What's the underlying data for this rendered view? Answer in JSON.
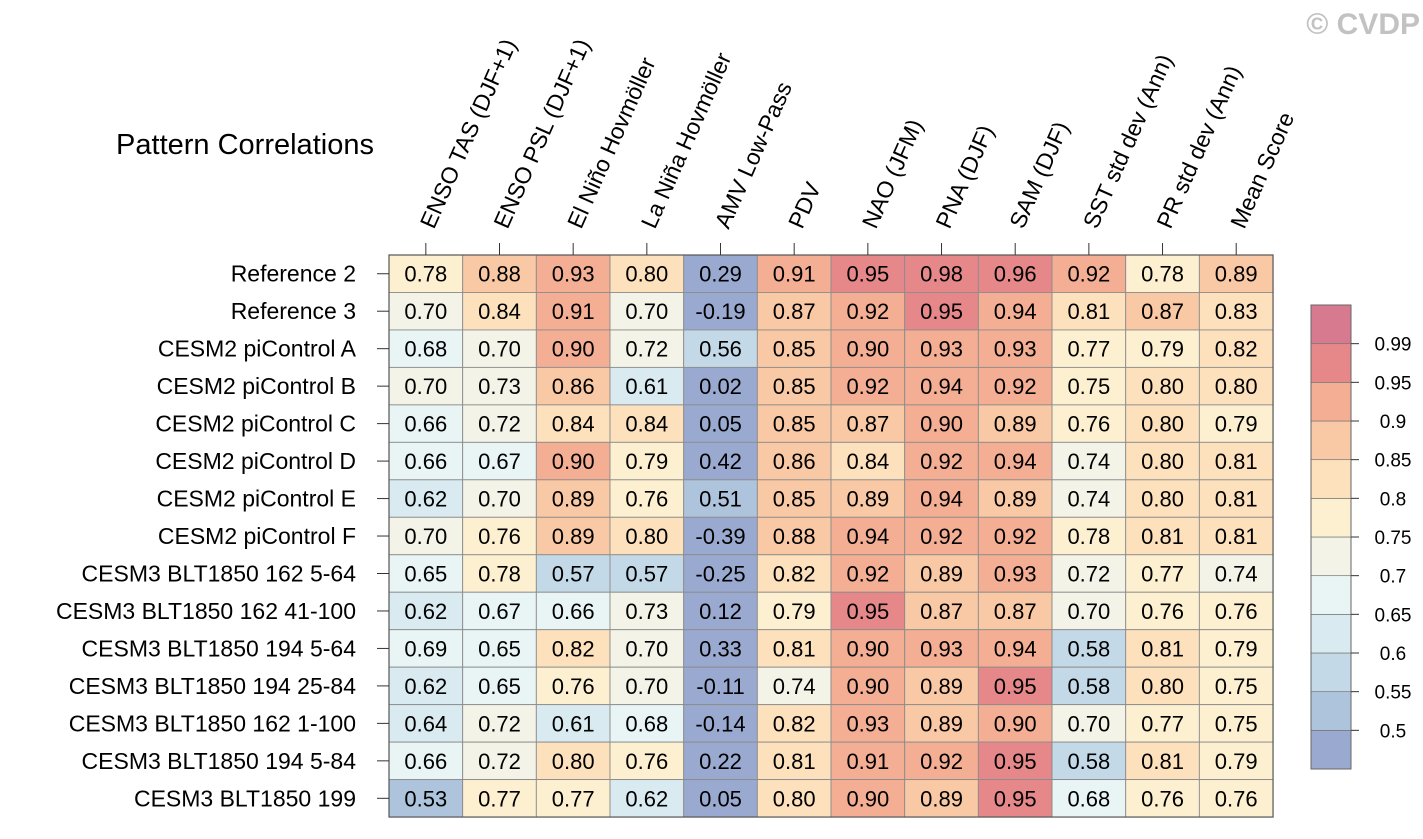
{
  "watermark": "© CVDP",
  "chart_data": {
    "type": "heatmap",
    "title": "Pattern Correlations",
    "columns": [
      "ENSO TAS (DJF+1)",
      "ENSO PSL (DJF+1)",
      "El Niño Hovmöller",
      "La Niña Hovmöller",
      "AMV Low-Pass",
      "PDV",
      "NAO (JFM)",
      "PNA (DJF)",
      "SAM (DJF)",
      "SST std dev (Ann)",
      "PR std dev (Ann)",
      "Mean Score"
    ],
    "rows": [
      "Reference 2",
      "Reference 3",
      "CESM2 piControl A",
      "CESM2 piControl B",
      "CESM2 piControl C",
      "CESM2 piControl D",
      "CESM2 piControl E",
      "CESM2 piControl F",
      "CESM3 BLT1850 162 5-64",
      "CESM3 BLT1850 162 41-100",
      "CESM3 BLT1850 194 5-64",
      "CESM3 BLT1850 194 25-84",
      "CESM3 BLT1850 162 1-100",
      "CESM3 BLT1850 194 5-84",
      "CESM3 BLT1850 199"
    ],
    "values": [
      [
        0.78,
        0.88,
        0.93,
        0.8,
        0.29,
        0.91,
        0.95,
        0.98,
        0.96,
        0.92,
        0.78,
        0.89
      ],
      [
        0.7,
        0.84,
        0.91,
        0.7,
        -0.19,
        0.87,
        0.92,
        0.95,
        0.94,
        0.81,
        0.87,
        0.83
      ],
      [
        0.68,
        0.7,
        0.9,
        0.72,
        0.56,
        0.85,
        0.9,
        0.93,
        0.93,
        0.77,
        0.79,
        0.82
      ],
      [
        0.7,
        0.73,
        0.86,
        0.61,
        0.02,
        0.85,
        0.92,
        0.94,
        0.92,
        0.75,
        0.8,
        0.8
      ],
      [
        0.66,
        0.72,
        0.84,
        0.84,
        0.05,
        0.85,
        0.87,
        0.9,
        0.89,
        0.76,
        0.8,
        0.79
      ],
      [
        0.66,
        0.67,
        0.9,
        0.79,
        0.42,
        0.86,
        0.84,
        0.92,
        0.94,
        0.74,
        0.8,
        0.81
      ],
      [
        0.62,
        0.7,
        0.89,
        0.76,
        0.51,
        0.85,
        0.89,
        0.94,
        0.89,
        0.74,
        0.8,
        0.81
      ],
      [
        0.7,
        0.76,
        0.89,
        0.8,
        -0.39,
        0.88,
        0.94,
        0.92,
        0.92,
        0.78,
        0.81,
        0.81
      ],
      [
        0.65,
        0.78,
        0.57,
        0.57,
        -0.25,
        0.82,
        0.92,
        0.89,
        0.93,
        0.72,
        0.77,
        0.74
      ],
      [
        0.62,
        0.67,
        0.66,
        0.73,
        0.12,
        0.79,
        0.95,
        0.87,
        0.87,
        0.7,
        0.76,
        0.76
      ],
      [
        0.69,
        0.65,
        0.82,
        0.7,
        0.33,
        0.81,
        0.9,
        0.93,
        0.94,
        0.58,
        0.81,
        0.79
      ],
      [
        0.62,
        0.65,
        0.76,
        0.7,
        -0.11,
        0.74,
        0.9,
        0.89,
        0.95,
        0.58,
        0.8,
        0.75
      ],
      [
        0.64,
        0.72,
        0.61,
        0.68,
        -0.14,
        0.82,
        0.93,
        0.89,
        0.9,
        0.7,
        0.77,
        0.75
      ],
      [
        0.66,
        0.72,
        0.8,
        0.76,
        0.22,
        0.81,
        0.91,
        0.92,
        0.95,
        0.58,
        0.81,
        0.79
      ],
      [
        0.53,
        0.77,
        0.77,
        0.62,
        0.05,
        0.8,
        0.9,
        0.89,
        0.95,
        0.68,
        0.76,
        0.76
      ]
    ],
    "value_labels": [
      [
        "0.78",
        "0.88",
        "0.93",
        "0.80",
        "0.29",
        "0.91",
        "0.95",
        "0.98",
        "0.96",
        "0.92",
        "0.78",
        "0.89"
      ],
      [
        "0.70",
        "0.84",
        "0.91",
        "0.70",
        "-0.19",
        "0.87",
        "0.92",
        "0.95",
        "0.94",
        "0.81",
        "0.87",
        "0.83"
      ],
      [
        "0.68",
        "0.70",
        "0.90",
        "0.72",
        "0.56",
        "0.85",
        "0.90",
        "0.93",
        "0.93",
        "0.77",
        "0.79",
        "0.82"
      ],
      [
        "0.70",
        "0.73",
        "0.86",
        "0.61",
        "0.02",
        "0.85",
        "0.92",
        "0.94",
        "0.92",
        "0.75",
        "0.80",
        "0.80"
      ],
      [
        "0.66",
        "0.72",
        "0.84",
        "0.84",
        "0.05",
        "0.85",
        "0.87",
        "0.90",
        "0.89",
        "0.76",
        "0.80",
        "0.79"
      ],
      [
        "0.66",
        "0.67",
        "0.90",
        "0.79",
        "0.42",
        "0.86",
        "0.84",
        "0.92",
        "0.94",
        "0.74",
        "0.80",
        "0.81"
      ],
      [
        "0.62",
        "0.70",
        "0.89",
        "0.76",
        "0.51",
        "0.85",
        "0.89",
        "0.94",
        "0.89",
        "0.74",
        "0.80",
        "0.81"
      ],
      [
        "0.70",
        "0.76",
        "0.89",
        "0.80",
        "-0.39",
        "0.88",
        "0.94",
        "0.92",
        "0.92",
        "0.78",
        "0.81",
        "0.81"
      ],
      [
        "0.65",
        "0.78",
        "0.57",
        "0.57",
        "-0.25",
        "0.82",
        "0.92",
        "0.89",
        "0.93",
        "0.72",
        "0.77",
        "0.74"
      ],
      [
        "0.62",
        "0.67",
        "0.66",
        "0.73",
        "0.12",
        "0.79",
        "0.95",
        "0.87",
        "0.87",
        "0.70",
        "0.76",
        "0.76"
      ],
      [
        "0.69",
        "0.65",
        "0.82",
        "0.70",
        "0.33",
        "0.81",
        "0.90",
        "0.93",
        "0.94",
        "0.58",
        "0.81",
        "0.79"
      ],
      [
        "0.62",
        "0.65",
        "0.76",
        "0.70",
        "-0.11",
        "0.74",
        "0.90",
        "0.89",
        "0.95",
        "0.58",
        "0.80",
        "0.75"
      ],
      [
        "0.64",
        "0.72",
        "0.61",
        "0.68",
        "-0.14",
        "0.82",
        "0.93",
        "0.89",
        "0.90",
        "0.70",
        "0.77",
        "0.75"
      ],
      [
        "0.66",
        "0.72",
        "0.80",
        "0.76",
        "0.22",
        "0.81",
        "0.91",
        "0.92",
        "0.95",
        "0.58",
        "0.81",
        "0.79"
      ],
      [
        "0.53",
        "0.77",
        "0.77",
        "0.62",
        "0.05",
        "0.80",
        "0.90",
        "0.89",
        "0.95",
        "0.68",
        "0.76",
        "0.76"
      ]
    ],
    "colorbar": {
      "levels": [
        0.5,
        0.55,
        0.6,
        0.65,
        0.7,
        0.75,
        0.8,
        0.85,
        0.9,
        0.95,
        0.99
      ],
      "tick_labels": [
        "0.5",
        "0.55",
        "0.6",
        "0.65",
        "0.7",
        "0.75",
        "0.8",
        "0.85",
        "0.9",
        "0.95",
        "0.99"
      ],
      "colors": [
        "#99a9cf",
        "#aec4dc",
        "#c3d9e7",
        "#d9ebf1",
        "#e9f4f5",
        "#f3f3e8",
        "#fdf0d0",
        "#fde0bc",
        "#f9c8a4",
        "#f3ae94",
        "#e6888a",
        "#d77a8f"
      ]
    }
  }
}
